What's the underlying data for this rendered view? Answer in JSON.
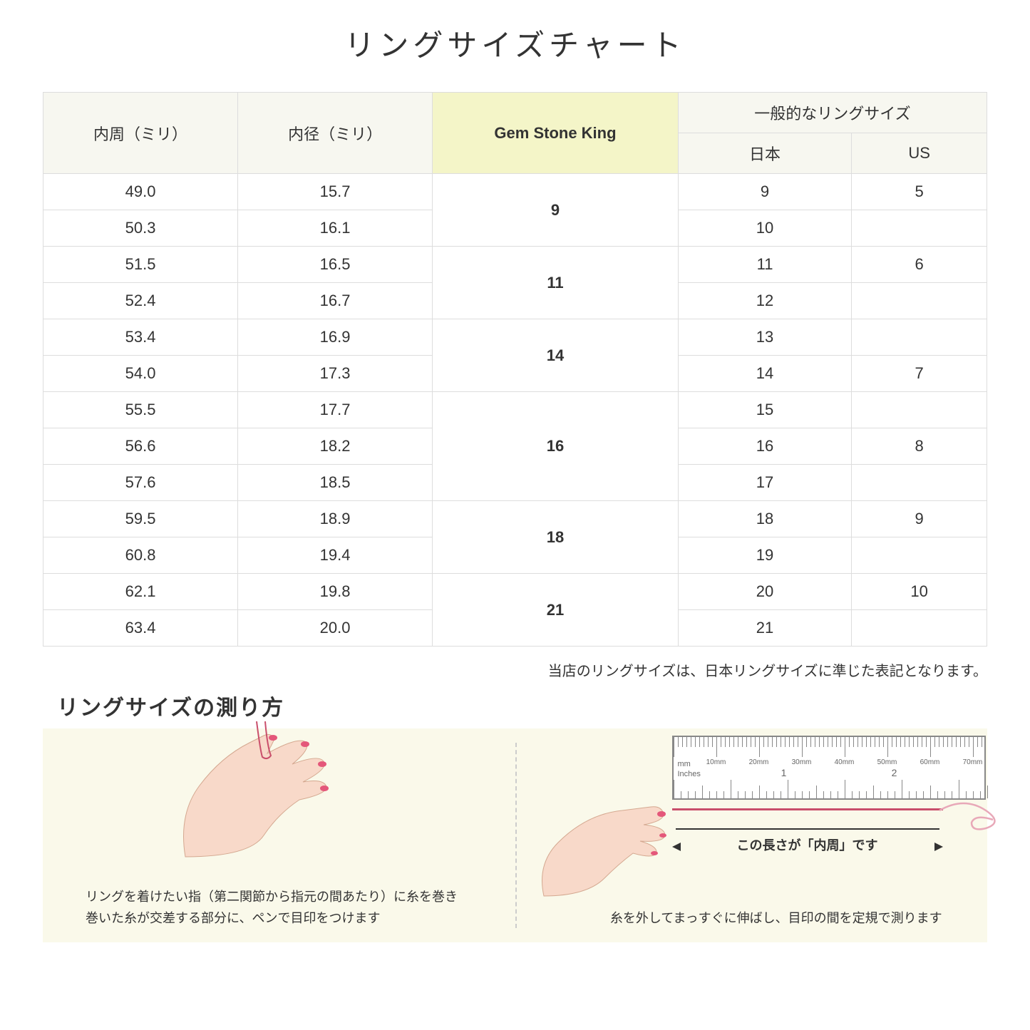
{
  "title": "リングサイズチャート",
  "table": {
    "headers": {
      "circumference": "内周（ミリ）",
      "diameter": "内径（ミリ）",
      "gsk": "Gem Stone King",
      "general": "一般的なリングサイズ",
      "japan": "日本",
      "us": "US"
    },
    "groups": [
      {
        "gsk": "9",
        "rows": [
          {
            "c": "49.0",
            "d": "15.7",
            "j": "9",
            "u": "5"
          },
          {
            "c": "50.3",
            "d": "16.1",
            "j": "10",
            "u": ""
          }
        ]
      },
      {
        "gsk": "11",
        "rows": [
          {
            "c": "51.5",
            "d": "16.5",
            "j": "11",
            "u": "6"
          },
          {
            "c": "52.4",
            "d": "16.7",
            "j": "12",
            "u": ""
          }
        ]
      },
      {
        "gsk": "14",
        "rows": [
          {
            "c": "53.4",
            "d": "16.9",
            "j": "13",
            "u": ""
          },
          {
            "c": "54.0",
            "d": "17.3",
            "j": "14",
            "u": "7"
          }
        ]
      },
      {
        "gsk": "16",
        "rows": [
          {
            "c": "55.5",
            "d": "17.7",
            "j": "15",
            "u": ""
          },
          {
            "c": "56.6",
            "d": "18.2",
            "j": "16",
            "u": "8"
          },
          {
            "c": "57.6",
            "d": "18.5",
            "j": "17",
            "u": ""
          }
        ]
      },
      {
        "gsk": "18",
        "rows": [
          {
            "c": "59.5",
            "d": "18.9",
            "j": "18",
            "u": "9"
          },
          {
            "c": "60.8",
            "d": "19.4",
            "j": "19",
            "u": ""
          }
        ]
      },
      {
        "gsk": "21",
        "rows": [
          {
            "c": "62.1",
            "d": "19.8",
            "j": "20",
            "u": "10"
          },
          {
            "c": "63.4",
            "d": "20.0",
            "j": "21",
            "u": ""
          }
        ]
      }
    ]
  },
  "note": "当店のリングサイズは、日本リングサイズに準じた表記となります。",
  "howto": {
    "title": "リングサイズの測り方",
    "left_caption_l1": "リングを着けたい指（第二関節から指元の間あたり）に糸を巻き",
    "left_caption_l2": "巻いた糸が交差する部分に、ペンで目印をつけます",
    "right_arrow_label": "この長さが「内周」です",
    "right_caption": "糸を外してまっすぐに伸ばし、目印の間を定規で測ります",
    "ruler_mm_label": "mm",
    "ruler_in_label": "Inches",
    "ruler_mm_ticks": [
      "10mm",
      "20mm",
      "30mm",
      "40mm",
      "50mm",
      "60mm",
      "70mm"
    ],
    "ruler_in_ticks": [
      "1",
      "2"
    ]
  },
  "colors": {
    "header_bg": "#f7f7f0",
    "gsk_bg": "#f4f5c8",
    "border": "#dddddd",
    "howto_bg": "#faf9ea",
    "skin": "#f8d9c9",
    "nail": "#e4577a",
    "thread": "#c94f6b"
  }
}
